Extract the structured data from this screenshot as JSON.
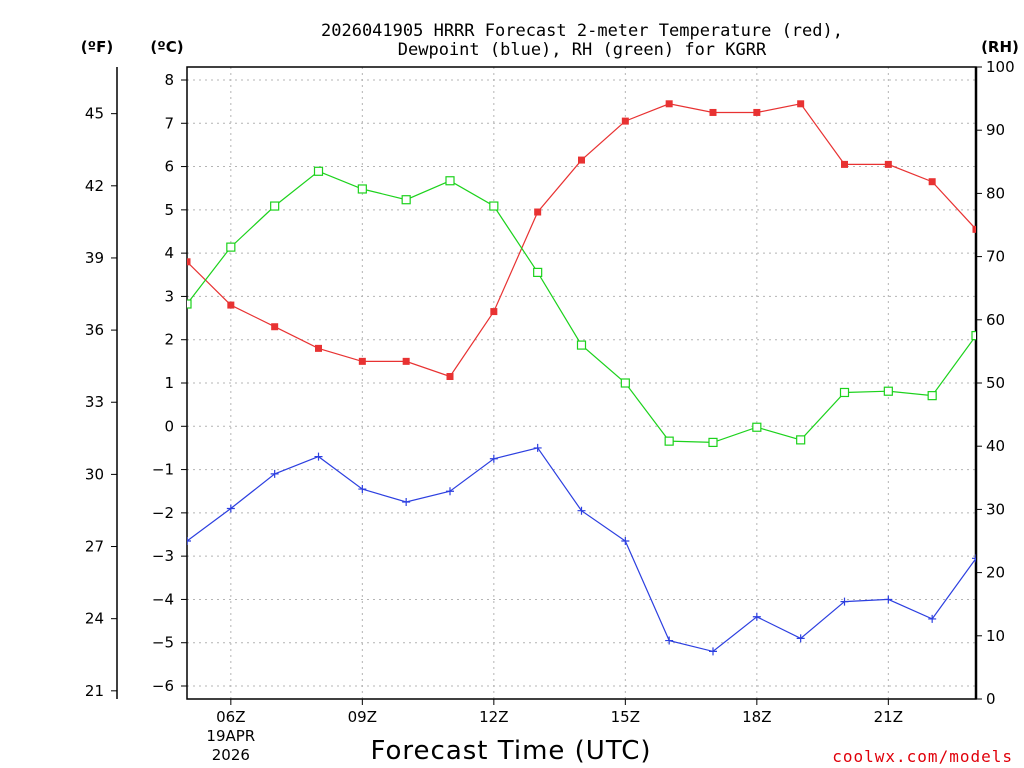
{
  "chart_data": {
    "type": "line",
    "title_lines": [
      "2026041905 HRRR Forecast 2-meter Temperature (red),",
      "Dewpoint (blue), RH (green) for KGRR"
    ],
    "xlabel": "Forecast Time (UTC)",
    "x_hours": [
      5,
      6,
      7,
      8,
      9,
      10,
      11,
      12,
      13,
      14,
      15,
      16,
      17,
      18,
      19,
      20,
      21,
      22,
      23
    ],
    "x_ticks": [
      {
        "hour": 6,
        "label": "06Z",
        "sub1": "19APR",
        "sub2": "2026"
      },
      {
        "hour": 9,
        "label": "09Z"
      },
      {
        "hour": 12,
        "label": "12Z"
      },
      {
        "hour": 15,
        "label": "15Z"
      },
      {
        "hour": 18,
        "label": "18Z"
      },
      {
        "hour": 21,
        "label": "21Z"
      }
    ],
    "xlim": [
      5,
      23
    ],
    "left_axis": {
      "unit": "(ºC)",
      "ylim": [
        -6.3,
        8.3
      ],
      "ticks": [
        "8",
        "7",
        "6",
        "5",
        "4",
        "3",
        "2",
        "1",
        "0",
        "−1",
        "−2",
        "−3",
        "−4",
        "−5",
        "−6"
      ],
      "tick_values": [
        8,
        7,
        6,
        5,
        4,
        3,
        2,
        1,
        0,
        -1,
        -2,
        -3,
        -4,
        -5,
        -6
      ]
    },
    "far_left_axis": {
      "unit": "(ºF)",
      "ticks": [
        "45",
        "42",
        "39",
        "36",
        "33",
        "30",
        "27",
        "24",
        "21"
      ],
      "tick_values": [
        45,
        42,
        39,
        36,
        33,
        30,
        27,
        24,
        21
      ]
    },
    "right_axis": {
      "unit": "(RH)",
      "ylim": [
        0,
        100
      ],
      "ticks": [
        "100",
        "90",
        "80",
        "70",
        "60",
        "50",
        "40",
        "30",
        "20",
        "10",
        "0"
      ],
      "tick_values": [
        100,
        90,
        80,
        70,
        60,
        50,
        40,
        30,
        20,
        10,
        0
      ]
    },
    "series": [
      {
        "name": "Temperature",
        "unit": "C",
        "color": "#e83232",
        "marker": "filled-square",
        "values": [
          3.8,
          2.8,
          2.3,
          1.8,
          1.5,
          1.5,
          1.15,
          2.65,
          4.95,
          6.15,
          7.05,
          7.45,
          7.25,
          7.25,
          7.45,
          6.05,
          6.05,
          5.65,
          4.55
        ]
      },
      {
        "name": "Dewpoint",
        "unit": "C",
        "color": "#2c3fe0",
        "marker": "plus",
        "values": [
          -2.65,
          -1.9,
          -1.1,
          -0.7,
          -1.45,
          -1.75,
          -1.5,
          -0.75,
          -0.5,
          -1.95,
          -2.65,
          -4.95,
          -5.2,
          -4.4,
          -4.9,
          -4.05,
          -4.0,
          -4.45,
          -3.05
        ]
      },
      {
        "name": "RH",
        "unit": "%",
        "color": "#1cd21c",
        "marker": "open-square",
        "values": [
          62.5,
          71.5,
          78.0,
          83.5,
          80.7,
          79.0,
          82.0,
          78.0,
          67.5,
          56.0,
          50.0,
          40.8,
          40.6,
          43.0,
          41.0,
          48.5,
          48.7,
          48.0,
          57.5
        ]
      }
    ]
  },
  "watermark": "coolwx.com/models"
}
